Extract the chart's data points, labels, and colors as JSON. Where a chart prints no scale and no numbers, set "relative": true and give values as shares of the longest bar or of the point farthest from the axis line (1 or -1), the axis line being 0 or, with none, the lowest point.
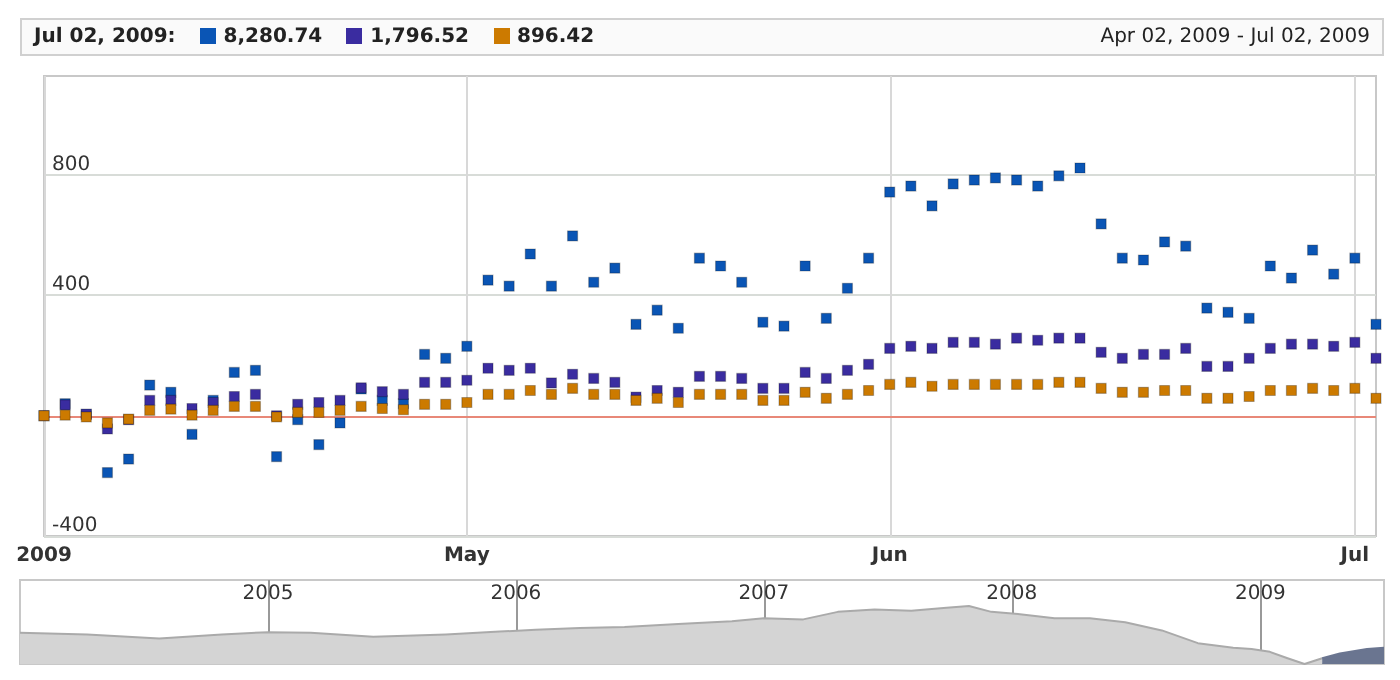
{
  "chart_data": [
    {
      "type": "scatter",
      "annotations": [
        "Jul 02, 2009:",
        "8,280.74",
        "1,796.52",
        "896.42",
        "Apr 02, 2009 - Jul 02, 2009"
      ],
      "categories": [
        "2009",
        null,
        null,
        null,
        null,
        null,
        null,
        null,
        null,
        null,
        null,
        null,
        null,
        null,
        null,
        null,
        null,
        null,
        null,
        null,
        "May",
        null,
        null,
        null,
        null,
        null,
        null,
        null,
        null,
        null,
        null,
        null,
        null,
        null,
        null,
        null,
        null,
        null,
        null,
        null,
        "Jun",
        null,
        null,
        null,
        null,
        null,
        null,
        null,
        null,
        null,
        null,
        null,
        null,
        null,
        null,
        null,
        null,
        null,
        null,
        null,
        null,
        null,
        "Jul",
        null
      ],
      "series": [
        {
          "color": "#0a55b5",
          "values": [
            0,
            40,
            5,
            -189,
            -144,
            102,
            78,
            -62,
            51,
            144,
            151,
            -136,
            -13,
            -96,
            -24,
            89,
            51,
            40,
            204,
            191,
            231,
            451,
            431,
            538,
            431,
            598,
            444,
            491,
            304,
            351,
            291,
            524,
            498,
            444,
            311,
            298,
            498,
            324,
            424,
            524,
            744,
            764,
            698,
            771,
            784,
            791,
            784,
            764,
            798,
            824,
            638,
            524,
            518,
            578,
            564,
            358,
            344,
            324,
            498,
            458,
            551,
            471,
            524,
            304
          ]
        },
        {
          "color": "#3a2ca0",
          "values": [
            0,
            36,
            5,
            -44,
            -13,
            51,
            51,
            24,
            44,
            64,
            71,
            0,
            38,
            44,
            51,
            93,
            80,
            71,
            111,
            111,
            118,
            158,
            151,
            158,
            109,
            138,
            124,
            111,
            62,
            84,
            78,
            131,
            131,
            124,
            91,
            91,
            144,
            124,
            151,
            171,
            224,
            231,
            224,
            244,
            244,
            238,
            258,
            251,
            258,
            258,
            211,
            191,
            204,
            204,
            224,
            164,
            164,
            191,
            224,
            238,
            238,
            231,
            244,
            191
          ]
        },
        {
          "color": "#cc7a00",
          "values": [
            0,
            2,
            -4,
            -24,
            -11,
            18,
            22,
            2,
            18,
            31,
            31,
            -4,
            11,
            11,
            18,
            31,
            24,
            20,
            38,
            38,
            44,
            71,
            71,
            84,
            71,
            91,
            71,
            71,
            51,
            58,
            44,
            71,
            71,
            71,
            51,
            51,
            78,
            58,
            71,
            84,
            104,
            111,
            98,
            104,
            104,
            104,
            104,
            104,
            111,
            111,
            91,
            78,
            78,
            84,
            84,
            58,
            58,
            64,
            84,
            84,
            91,
            84,
            91,
            58
          ]
        }
      ],
      "ylim": [
        -400,
        1130
      ],
      "yticks": [
        -400,
        {
          "value": 0,
          "label": null
        },
        400,
        800
      ],
      "grid": true,
      "marker": "square",
      "ref_lines": [
        {
          "axis": "y",
          "value": 0,
          "color": "#e88878"
        }
      ]
    },
    {
      "type": "area",
      "relative": true,
      "marker": "none",
      "grid": "x",
      "tick_labels": "x",
      "xlim": [
        "2004-01-02",
        "2009-07-02"
      ],
      "xticks": [
        {
          "value": "2005-01-01",
          "label": "2005"
        },
        {
          "value": "2006-01-01",
          "label": "2006"
        },
        {
          "value": "2007-01-01",
          "label": "2007"
        },
        {
          "value": "2008-01-01",
          "label": "2008"
        },
        {
          "value": "2009-01-01",
          "label": "2009"
        }
      ],
      "series": [
        {
          "color": "#d4d4d4",
          "x": [
            "2004-01-02",
            "2004-04-10",
            "2004-07-25",
            "2004-10-25",
            "2005-01-01",
            "2005-03-05",
            "2005-06-05",
            "2005-09-20",
            "2005-12-08",
            "2006-01-30",
            "2006-04-05",
            "2006-06-10",
            "2006-08-28",
            "2006-11-15",
            "2007-01-01",
            "2007-02-28",
            "2007-04-20",
            "2007-06-13",
            "2007-08-06",
            "2007-09-27",
            "2007-10-30",
            "2007-12-02",
            "2008-01-13",
            "2008-03-04",
            "2008-04-25",
            "2008-06-16",
            "2008-08-09",
            "2008-10-01",
            "2008-10-27",
            "2008-11-22",
            "2008-12-19",
            "2009-01-15",
            "2009-02-10",
            "2009-03-07",
            "2009-04-02"
          ],
          "values": [
            0.54,
            0.51,
            0.44,
            0.51,
            0.55,
            0.54,
            0.47,
            0.51,
            0.56,
            0.59,
            0.62,
            0.64,
            0.69,
            0.74,
            0.79,
            0.77,
            0.9,
            0.94,
            0.92,
            0.97,
            1,
            0.9,
            0.86,
            0.79,
            0.79,
            0.72,
            0.58,
            0.36,
            0.32,
            0.28,
            0.26,
            0.21,
            0.1,
            0,
            0.1
          ]
        },
        {
          "color": "#6a7590",
          "x": [
            "2009-04-02",
            "2009-04-28",
            "2009-06-07",
            "2009-07-02"
          ],
          "values": [
            0.1,
            0.18,
            0.26,
            0.28
          ]
        }
      ]
    }
  ]
}
